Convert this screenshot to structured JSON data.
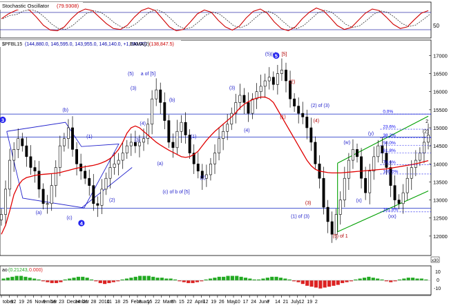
{
  "panels": {
    "stochastic": {
      "label": "Stochastic Oscillator",
      "value": "(79.9308)",
      "ticks": [
        "50"
      ],
      "colors": {
        "line": "#d00000",
        "band": "#3333aa"
      }
    },
    "price": {
      "label": "$PFBL15",
      "ohlc": "(144,880.0, 146,595.0, 143,955.0, 146,140.0, +1,390.00)",
      "ma_label": "EAMA(2)",
      "ma_value": "(138,847.5)",
      "colors": {
        "candle": "#000000",
        "ma": "#e00000",
        "hline": "#3344cc",
        "channel": "#00a000",
        "fib": "#0000ee",
        "label_blue": "#2222cc",
        "label_red": "#b00000"
      }
    },
    "macd": {
      "label": "ao",
      "value1": "(0.21243,",
      "value2": "0.000)",
      "ticks": [
        "10",
        "0",
        "-10"
      ],
      "colors": {
        "pos": "#22aa22",
        "neg": "#dd2222"
      }
    }
  },
  "chart_data": [
    {
      "type": "line",
      "title": "Stochastic Oscillator",
      "yticks": [
        50
      ],
      "series": [
        {
          "name": "Stochastic Oscillator",
          "values": [
            55,
            70,
            80,
            88,
            82,
            60,
            35,
            20,
            18,
            30,
            55,
            75,
            85,
            80,
            60,
            40,
            25,
            22,
            35,
            60,
            80,
            88,
            80,
            55,
            30,
            18,
            22,
            45,
            70,
            82,
            75,
            50,
            30,
            20,
            32,
            58,
            78,
            85,
            72,
            45,
            25,
            18,
            30,
            55,
            75,
            88,
            80,
            58,
            34,
            22,
            28,
            50,
            72,
            85,
            80,
            60,
            38,
            25,
            30,
            52,
            72,
            80
          ]
        }
      ]
    },
    {
      "type": "candlestick",
      "title": "$PFBL15",
      "ylim": [
        11500,
        17200
      ],
      "yticks": [
        12000,
        12500,
        13000,
        13500,
        14000,
        14500,
        15000,
        15500,
        16000,
        16500,
        17000
      ],
      "xticks": [
        {
          "x": 0,
          "label": "tober"
        },
        {
          "x": 3,
          "label": "12"
        },
        {
          "x": 6,
          "label": "19"
        },
        {
          "x": 9,
          "label": "26"
        },
        {
          "x": 12,
          "label": "November"
        },
        {
          "x": 15,
          "label": "9"
        },
        {
          "x": 18,
          "label": "16"
        },
        {
          "x": 21,
          "label": "23"
        },
        {
          "x": 24,
          "label": "December"
        },
        {
          "x": 27,
          "label": "14"
        },
        {
          "x": 30,
          "label": "21"
        },
        {
          "x": 33,
          "label": "28"
        },
        {
          "x": 36,
          "label": "2010"
        },
        {
          "x": 39,
          "label": "11"
        },
        {
          "x": 42,
          "label": "18"
        },
        {
          "x": 45,
          "label": "25"
        },
        {
          "x": 48,
          "label": "February"
        },
        {
          "x": 51,
          "label": "8"
        },
        {
          "x": 54,
          "label": "15"
        },
        {
          "x": 57,
          "label": "22"
        },
        {
          "x": 60,
          "label": "March"
        },
        {
          "x": 63,
          "label": "8"
        },
        {
          "x": 66,
          "label": "15"
        },
        {
          "x": 69,
          "label": "22"
        },
        {
          "x": 72,
          "label": "April"
        },
        {
          "x": 75,
          "label": "12"
        },
        {
          "x": 78,
          "label": "19"
        },
        {
          "x": 81,
          "label": "26"
        },
        {
          "x": 84,
          "label": "May"
        },
        {
          "x": 87,
          "label": "10"
        },
        {
          "x": 90,
          "label": "17"
        },
        {
          "x": 93,
          "label": "24"
        },
        {
          "x": 96,
          "label": "June"
        },
        {
          "x": 99,
          "label": "7"
        },
        {
          "x": 102,
          "label": "14"
        },
        {
          "x": 105,
          "label": "21"
        },
        {
          "x": 108,
          "label": "July"
        },
        {
          "x": 111,
          "label": "12"
        },
        {
          "x": 114,
          "label": "19"
        },
        {
          "x": 117,
          "label": "2"
        }
      ],
      "closes": [
        12600,
        13300,
        14100,
        14400,
        14700,
        14500,
        14200,
        13900,
        13800,
        13300,
        12900,
        12900,
        13400,
        13900,
        14500,
        14700,
        15000,
        14400,
        14000,
        13800,
        13600,
        13400,
        12900,
        12850,
        13300,
        13600,
        13900,
        14000,
        14100,
        14300,
        14500,
        14600,
        14500,
        14600,
        14700,
        15100,
        15800,
        16050,
        15700,
        15200,
        14600,
        14450,
        14900,
        15150,
        14800,
        14300,
        14000,
        13800,
        13600,
        13700,
        14000,
        14300,
        14700,
        14900,
        15100,
        15400,
        15700,
        15900,
        15700,
        15400,
        15800,
        16000,
        16150,
        16300,
        16400,
        16200,
        16500,
        16600,
        16300,
        15800,
        15600,
        15400,
        15300,
        15000,
        14600,
        14000,
        13600,
        12800,
        12400,
        12050,
        12600,
        13000,
        13600,
        14100,
        14400,
        14200,
        13600,
        13200,
        13800,
        14200,
        14500,
        14300,
        13900,
        13400,
        13000,
        12900,
        13200,
        13600,
        13900,
        14100,
        14300,
        14600,
        14800
      ],
      "ma": [
        12050,
        12300,
        12700,
        13150,
        13400,
        13550,
        13620,
        13650,
        13680,
        13700,
        13710,
        13720,
        13730,
        13740,
        13760,
        13790,
        13820,
        13850,
        13880,
        13900,
        13920,
        13940,
        13960,
        13990,
        14030,
        14080,
        14150,
        14260,
        14400,
        14600,
        14850,
        15000,
        15050,
        15000,
        14900,
        14800,
        14700,
        14600,
        14520,
        14450,
        14380,
        14320,
        14260,
        14200,
        14180,
        14200,
        14260,
        14350,
        14500,
        14650,
        14780,
        14900,
        15000,
        15100,
        15200,
        15300,
        15420,
        15550,
        15650,
        15720,
        15780,
        15820,
        15850,
        15850,
        15800,
        15700,
        15500,
        15300,
        15100,
        14900,
        14700,
        14500,
        14300,
        14100,
        13950,
        13850,
        13800,
        13780,
        13760,
        13750,
        13750,
        13750,
        13760,
        13770,
        13780,
        13790,
        13800,
        13810,
        13820,
        13830,
        13840,
        13850,
        13860,
        13880,
        13900,
        13920,
        13940,
        13960,
        13980,
        14000,
        14030,
        14060,
        14090
      ],
      "hlines": [
        15380,
        14740,
        12770
      ],
      "fib_levels": [
        {
          "label": "0.0%",
          "value": 15380
        },
        {
          "label": "23.6%",
          "value": 14960
        },
        {
          "label": "38.2%",
          "value": 14720
        },
        {
          "label": "50.0%",
          "value": 14510
        },
        {
          "label": "61.8%",
          "value": 14300
        },
        {
          "label": "78.6%",
          "value": 13980
        },
        {
          "label": "100.0%",
          "value": 13720
        },
        {
          "label": "161.8%",
          "value": 12670
        }
      ],
      "wave_labels": [
        {
          "text": "3",
          "x": 0.5,
          "y": 15220,
          "style": "circle"
        },
        {
          "text": "(b)",
          "x": 24,
          "y": 15450,
          "style": "blue"
        },
        {
          "text": "(1)",
          "x": 33,
          "y": 14710,
          "style": "blue"
        },
        {
          "text": "(3)",
          "x": 51,
          "y": 14620,
          "style": "blue"
        },
        {
          "text": "(a)",
          "x": 14,
          "y": 12610,
          "style": "blue"
        },
        {
          "text": "(c)",
          "x": 25.5,
          "y": 12470,
          "style": "blue"
        },
        {
          "text": "4",
          "x": 30,
          "y": 12360,
          "style": "circle"
        },
        {
          "text": "(2)",
          "x": 41.5,
          "y": 12950,
          "style": "blue"
        },
        {
          "text": "(5)",
          "x": 48.5,
          "y": 16450,
          "style": "blue"
        },
        {
          "text": "a of [5]",
          "x": 55,
          "y": 16450,
          "style": "blue"
        },
        {
          "text": "(3)",
          "x": 49.5,
          "y": 16050,
          "style": "blue"
        },
        {
          "text": "(4)",
          "x": 53,
          "y": 15080,
          "style": "blue"
        },
        {
          "text": "(b)",
          "x": 64,
          "y": 15730,
          "style": "blue"
        },
        {
          "text": "(a)",
          "x": 59.5,
          "y": 13970,
          "style": "blue"
        },
        {
          "text": "(1)",
          "x": 72,
          "y": 14710,
          "style": "blue"
        },
        {
          "text": "(2)",
          "x": 75.5,
          "y": 13580,
          "style": "blue"
        },
        {
          "text": "(c) of b of [5]",
          "x": 65.5,
          "y": 13180,
          "style": "blue"
        },
        {
          "text": "(3)",
          "x": 86.5,
          "y": 16060,
          "style": "blue"
        },
        {
          "text": "(4)",
          "x": 92,
          "y": 14890,
          "style": "blue"
        },
        {
          "text": "(5)(c)",
          "x": 101,
          "y": 17000,
          "style": "blue"
        },
        {
          "text": "5",
          "x": 103,
          "y": 17000,
          "style": "circle"
        },
        {
          "text": "[5]",
          "x": 106,
          "y": 17000,
          "style": "red"
        },
        {
          "text": "(2)",
          "x": 109,
          "y": 16230,
          "style": "red"
        },
        {
          "text": "(1)",
          "x": 105.5,
          "y": 15260,
          "style": "red"
        },
        {
          "text": "(2) of (3)",
          "x": 119.5,
          "y": 15570,
          "style": "blue"
        },
        {
          "text": "(4)",
          "x": 118,
          "y": 15150,
          "style": "red"
        },
        {
          "text": "(3)",
          "x": 115,
          "y": 12880,
          "style": "red"
        },
        {
          "text": "(1) of (3)",
          "x": 112,
          "y": 12500,
          "style": "blue"
        },
        {
          "text": "(5) of 1",
          "x": 127,
          "y": 11960,
          "style": "red"
        },
        {
          "text": "(w)",
          "x": 129.5,
          "y": 14550,
          "style": "blue"
        },
        {
          "text": "(y)",
          "x": 138.5,
          "y": 14800,
          "style": "blue"
        },
        {
          "text": "(x)",
          "x": 134,
          "y": 12940,
          "style": "blue"
        },
        {
          "text": "(xx)",
          "x": 146.5,
          "y": 12500,
          "style": "blue"
        },
        {
          "text": "2",
          "x": 159.5,
          "y": 15130,
          "style": "black"
        },
        {
          "text": "(2)",
          "x": 159,
          "y": 14860,
          "style": "black"
        }
      ]
    },
    {
      "type": "bar",
      "title": "ao",
      "yticks": [
        10,
        0,
        -10
      ],
      "values": [
        2,
        3,
        4,
        5,
        5,
        4,
        3,
        2,
        1,
        -1,
        -2,
        -3,
        -3,
        -2,
        1,
        2,
        3,
        4,
        4,
        3,
        1,
        -1,
        -3,
        -4,
        -3,
        -2,
        -1,
        1,
        2,
        3,
        4,
        5,
        5,
        5,
        4,
        3,
        3,
        2,
        2,
        1,
        -1,
        -2,
        -3,
        -3,
        -2,
        -1,
        1,
        2,
        3,
        4,
        4,
        5,
        5,
        5,
        4,
        3,
        2,
        1,
        1,
        2,
        3,
        4,
        4,
        3,
        2,
        1,
        -1,
        -2,
        -4,
        -6,
        -7,
        -8,
        -9,
        -8,
        -7,
        -6,
        -5,
        -3,
        -2,
        -1,
        1,
        2,
        3,
        4,
        3,
        2,
        1,
        -1,
        -2,
        -1,
        1,
        2,
        3,
        3,
        2,
        2,
        1
      ]
    }
  ]
}
